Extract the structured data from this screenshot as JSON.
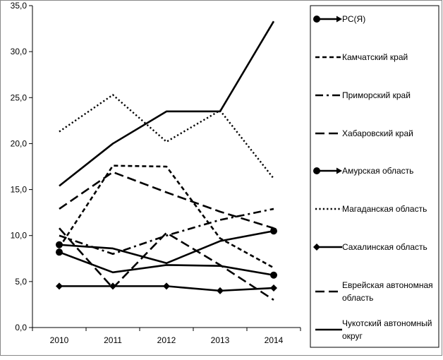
{
  "chart_data": {
    "type": "line",
    "title": "",
    "xlabel": "",
    "ylabel": "",
    "categories": [
      "2010",
      "2011",
      "2012",
      "2013",
      "2014"
    ],
    "ylim": [
      0,
      35
    ],
    "y_ticks": [
      "0,0",
      "5,0",
      "10,0",
      "15,0",
      "20,0",
      "25,0",
      "30,0",
      "35,0"
    ],
    "grid": false,
    "legend_position": "right",
    "series": [
      {
        "name": "РС(Я)",
        "values": [
          8.2,
          6.0,
          6.8,
          6.7,
          5.7
        ],
        "style": "solid-marker-circle-arrow",
        "color": "#000000"
      },
      {
        "name": "Камчатский край",
        "values": [
          8.7,
          17.6,
          17.5,
          9.7,
          6.5
        ],
        "style": "dashed-short",
        "color": "#000000"
      },
      {
        "name": "Приморский край",
        "values": [
          10.0,
          8.0,
          10.0,
          11.7,
          12.9
        ],
        "style": "dash-dot",
        "color": "#000000"
      },
      {
        "name": "Хабаровский край",
        "values": [
          12.9,
          16.9,
          14.7,
          12.6,
          10.8
        ],
        "style": "dashed-long",
        "color": "#000000"
      },
      {
        "name": "Амурская область",
        "values": [
          9.0,
          8.6,
          7.0,
          9.4,
          10.5
        ],
        "style": "solid-marker-circle-arrow",
        "color": "#000000"
      },
      {
        "name": "Магаданская область",
        "values": [
          21.3,
          25.3,
          20.2,
          23.6,
          16.2
        ],
        "style": "dotted",
        "color": "#000000"
      },
      {
        "name": "Сахалинская область",
        "values": [
          4.5,
          4.5,
          4.5,
          4.0,
          4.3
        ],
        "style": "solid-marker-diamond",
        "color": "#000000"
      },
      {
        "name": "Еврейская автономная область",
        "values": [
          10.8,
          4.3,
          10.3,
          6.8,
          3.0
        ],
        "style": "dashed-long",
        "color": "#000000"
      },
      {
        "name": "Чукотский автономный округ",
        "values": [
          15.4,
          20.0,
          23.5,
          23.5,
          33.3
        ],
        "style": "solid",
        "color": "#000000"
      }
    ]
  }
}
